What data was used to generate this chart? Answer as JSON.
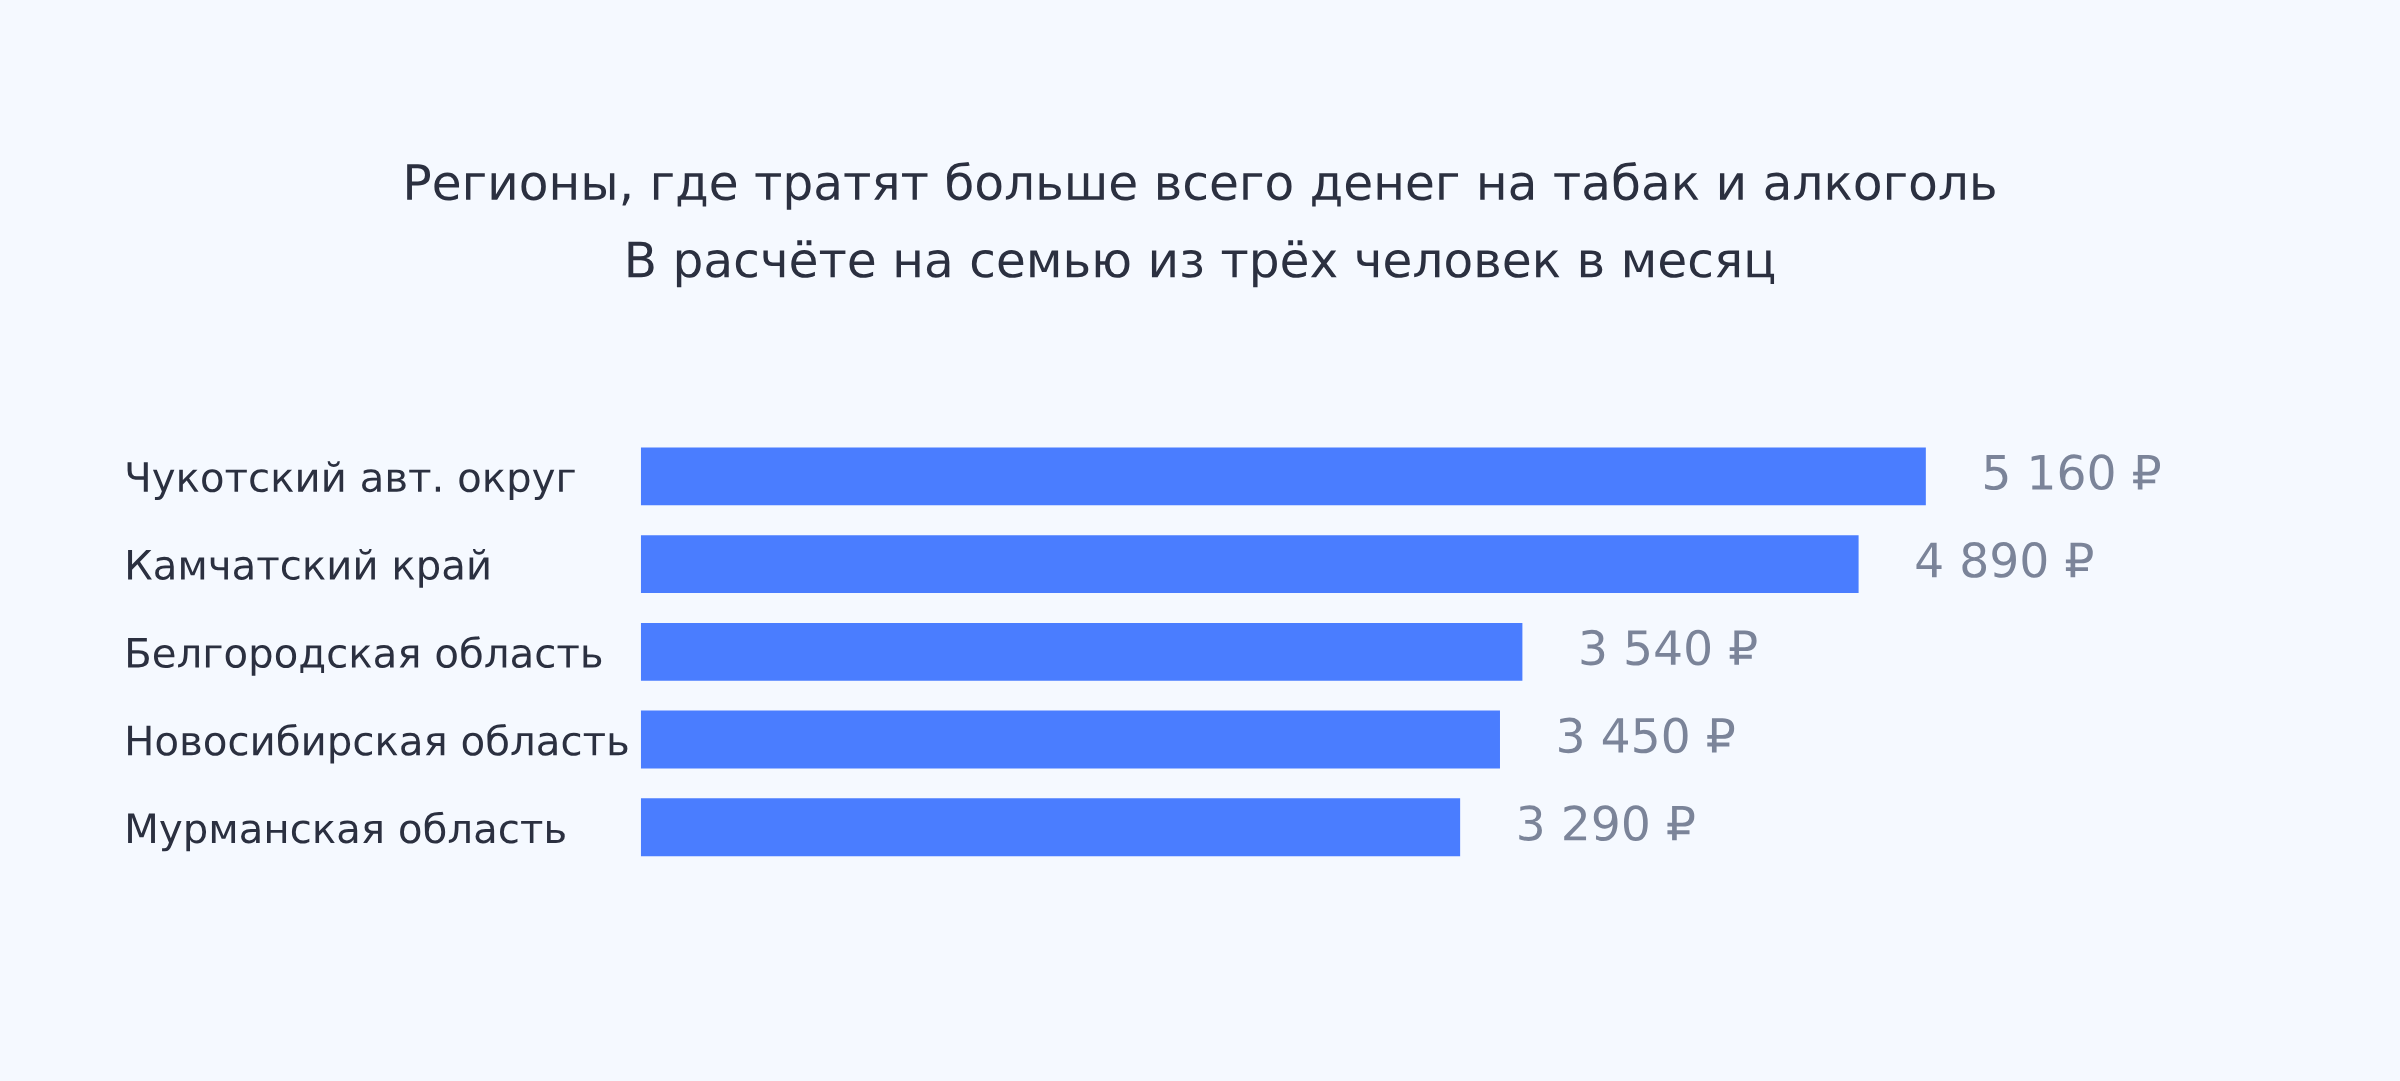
{
  "chart_data": {
    "type": "bar",
    "orientation": "horizontal",
    "title": "Регионы, где тратят больше всего денег на табак и алкоголь",
    "subtitle": "В расчёте на семью из трёх человек в месяц",
    "categories": [
      "Чукотский авт. округ",
      "Камчатский край",
      "Белгородская область",
      "Новосибирская область",
      "Мурманская область"
    ],
    "values": [
      5160,
      4890,
      3540,
      3450,
      3290
    ],
    "value_labels": [
      "5 160 ₽",
      "4 890 ₽",
      "3 540 ₽",
      "3 450 ₽",
      "3 290 ₽"
    ],
    "color": "#4a7dff",
    "grid": false,
    "legend": false
  }
}
